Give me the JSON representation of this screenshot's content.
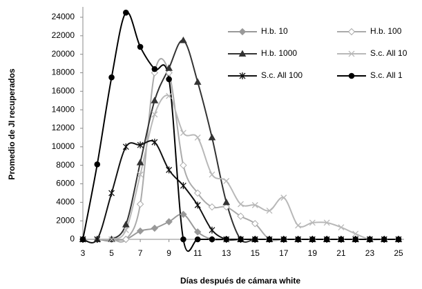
{
  "chart_data": {
    "type": "line",
    "x_label": "Días después de cámara white",
    "y_label": "Promedio de JI recuperados",
    "x": [
      3,
      4,
      5,
      6,
      7,
      8,
      9,
      10,
      11,
      12,
      13,
      14,
      15,
      16,
      17,
      18,
      19,
      20,
      21,
      22,
      23,
      24,
      25
    ],
    "series": [
      {
        "name": "H.b. 10",
        "color": "#999999",
        "marker": "diamond",
        "marker_fill": "#999999",
        "values": [
          0,
          0,
          0,
          0,
          900,
          1200,
          1900,
          2700,
          800,
          0,
          0,
          0,
          0,
          0,
          0,
          0,
          0,
          0,
          0,
          0,
          0,
          0,
          0
        ]
      },
      {
        "name": "H.b. 100",
        "color": "#aaaaaa",
        "marker": "diamond",
        "marker_fill": "#ffffff",
        "values": [
          0,
          0,
          0,
          0,
          3800,
          18000,
          18000,
          8000,
          5000,
          3500,
          3500,
          2500,
          1700,
          0,
          0,
          0,
          0,
          0,
          0,
          0,
          0,
          0,
          0
        ]
      },
      {
        "name": "H.b. 1000",
        "color": "#333333",
        "marker": "triangle",
        "marker_fill": "#333333",
        "values": [
          0,
          0,
          0,
          1600,
          8300,
          15000,
          18500,
          21500,
          17000,
          11000,
          4000,
          0,
          0,
          0,
          0,
          0,
          0,
          0,
          0,
          0,
          0,
          0,
          0
        ]
      },
      {
        "name": "S.c. All 10",
        "color": "#b8b8b8",
        "marker": "x",
        "marker_fill": "#b8b8b8",
        "values": [
          0,
          0,
          0,
          1000,
          7000,
          13500,
          15500,
          11500,
          11000,
          7000,
          6300,
          3800,
          3700,
          3100,
          4500,
          1500,
          1800,
          1800,
          1300,
          600,
          0,
          0,
          0
        ]
      },
      {
        "name": "S.c. All 100",
        "color": "#111111",
        "marker": "asterisk",
        "marker_fill": "#111111",
        "values": [
          0,
          0,
          5000,
          10000,
          10200,
          10500,
          7500,
          5800,
          3700,
          1000,
          0,
          0,
          0,
          0,
          0,
          0,
          0,
          0,
          0,
          0,
          0,
          0,
          0
        ]
      },
      {
        "name": "S.c. All 1",
        "color": "#000000",
        "marker": "circle",
        "marker_fill": "#000000",
        "values": [
          0,
          8100,
          17500,
          24500,
          20800,
          18400,
          17300,
          0,
          0,
          0,
          0,
          0,
          0,
          0,
          0,
          0,
          0,
          0,
          0,
          0,
          0,
          0,
          0
        ]
      }
    ],
    "xlim": [
      3,
      25
    ],
    "xticks": [
      3,
      5,
      7,
      9,
      11,
      13,
      15,
      17,
      19,
      21,
      23,
      25
    ],
    "ylim": [
      0,
      24000
    ],
    "yticks": [
      0,
      2000,
      4000,
      6000,
      8000,
      10000,
      12000,
      14000,
      16000,
      18000,
      20000,
      22000,
      24000
    ],
    "legend": "upper right",
    "smooth": true
  }
}
